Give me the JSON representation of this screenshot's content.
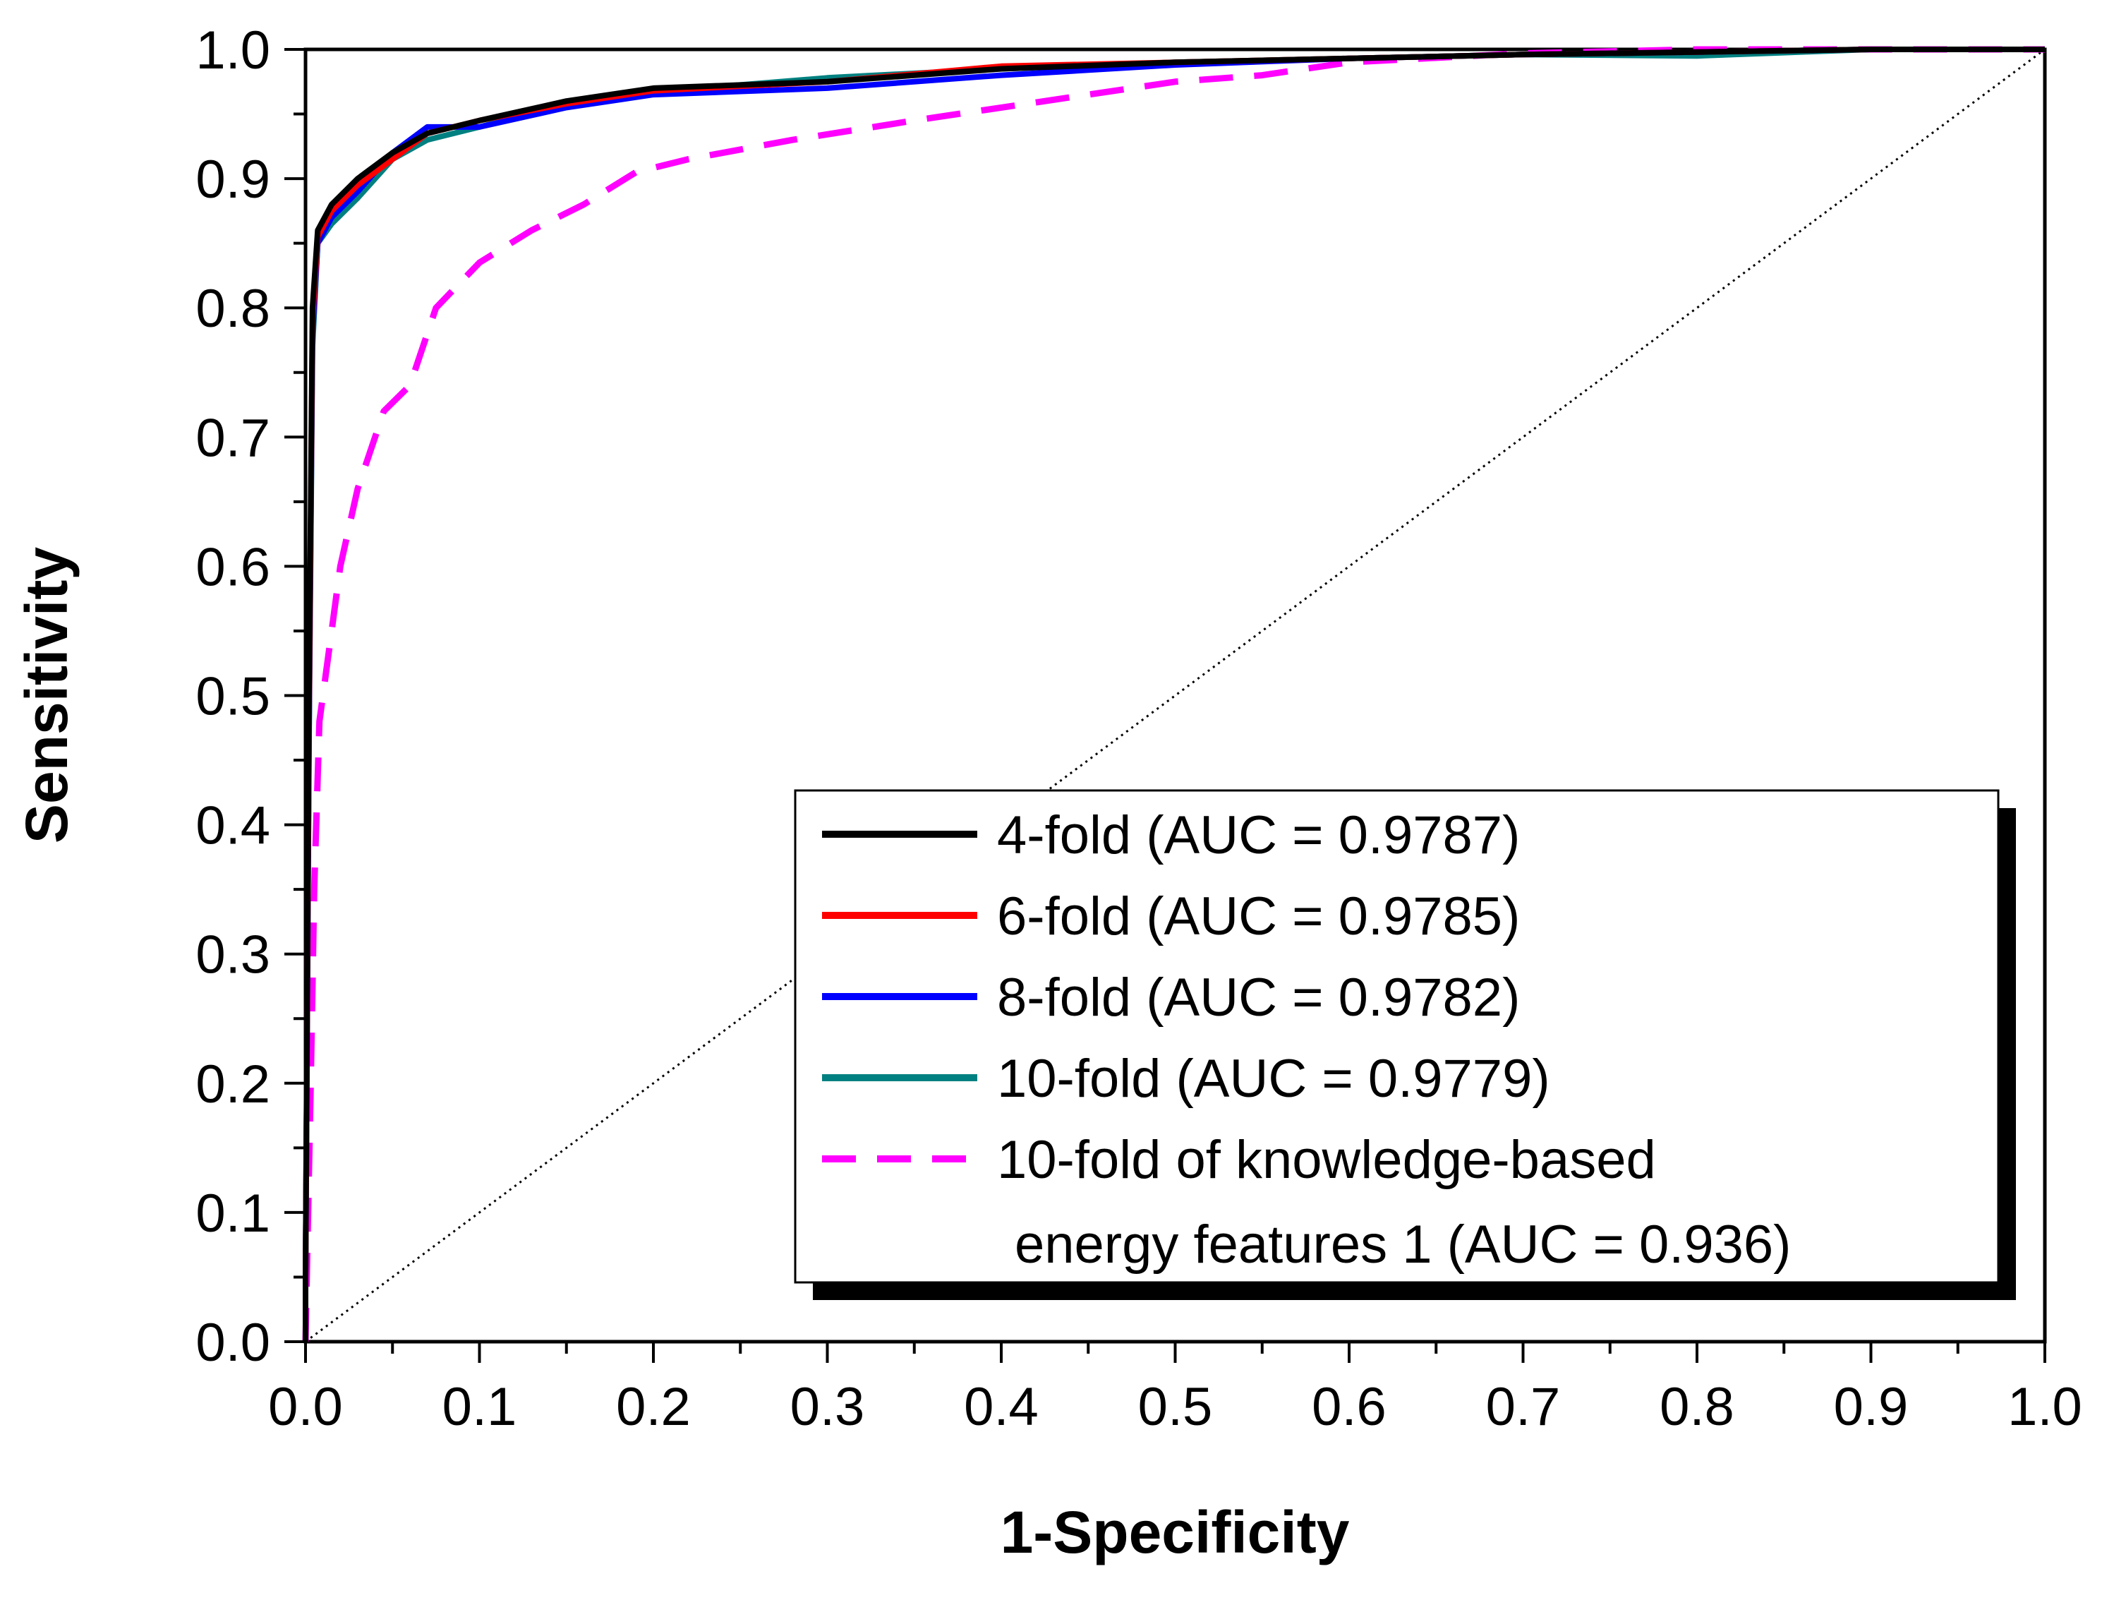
{
  "chart_data": {
    "type": "line",
    "title": "",
    "xlabel": "1-Specificity",
    "ylabel": "Sensitivity",
    "xlim": [
      0.0,
      1.0
    ],
    "ylim": [
      0.0,
      1.0
    ],
    "x_ticks": [
      "0.0",
      "0.1",
      "0.2",
      "0.3",
      "0.4",
      "0.5",
      "0.6",
      "0.7",
      "0.8",
      "0.9",
      "1.0"
    ],
    "y_ticks": [
      "0.0",
      "0.1",
      "0.2",
      "0.3",
      "0.4",
      "0.5",
      "0.6",
      "0.7",
      "0.8",
      "0.9",
      "1.0"
    ],
    "grid": false,
    "legend_position": "bottom-right",
    "series": [
      {
        "name": "4-fold (AUC = 0.9787)",
        "color": "#000000",
        "dash": "solid",
        "points": [
          [
            0,
            0
          ],
          [
            0,
            0.05
          ],
          [
            0.002,
            0.5
          ],
          [
            0.004,
            0.8
          ],
          [
            0.007,
            0.86
          ],
          [
            0.015,
            0.88
          ],
          [
            0.03,
            0.9
          ],
          [
            0.05,
            0.92
          ],
          [
            0.07,
            0.935
          ],
          [
            0.1,
            0.945
          ],
          [
            0.15,
            0.96
          ],
          [
            0.2,
            0.97
          ],
          [
            0.3,
            0.975
          ],
          [
            0.4,
            0.985
          ],
          [
            0.5,
            0.99
          ],
          [
            0.6,
            0.993
          ],
          [
            0.7,
            0.996
          ],
          [
            0.8,
            0.998
          ],
          [
            0.9,
            1.0
          ],
          [
            1.0,
            1.0
          ]
        ]
      },
      {
        "name": "6-fold (AUC = 0.9785)",
        "color": "#ff0000",
        "dash": "solid",
        "points": [
          [
            0,
            0
          ],
          [
            0,
            0.05
          ],
          [
            0.002,
            0.48
          ],
          [
            0.004,
            0.79
          ],
          [
            0.007,
            0.855
          ],
          [
            0.015,
            0.875
          ],
          [
            0.03,
            0.895
          ],
          [
            0.05,
            0.915
          ],
          [
            0.07,
            0.935
          ],
          [
            0.1,
            0.945
          ],
          [
            0.15,
            0.958
          ],
          [
            0.2,
            0.968
          ],
          [
            0.3,
            0.975
          ],
          [
            0.4,
            0.987
          ],
          [
            0.5,
            0.99
          ],
          [
            0.6,
            0.993
          ],
          [
            0.7,
            0.996
          ],
          [
            0.8,
            0.998
          ],
          [
            0.9,
            1.0
          ],
          [
            1.0,
            1.0
          ]
        ]
      },
      {
        "name": "8-fold (AUC = 0.9782)",
        "color": "#0000ff",
        "dash": "solid",
        "points": [
          [
            0,
            0
          ],
          [
            0,
            0.05
          ],
          [
            0.002,
            0.47
          ],
          [
            0.004,
            0.78
          ],
          [
            0.007,
            0.85
          ],
          [
            0.015,
            0.87
          ],
          [
            0.03,
            0.89
          ],
          [
            0.05,
            0.92
          ],
          [
            0.07,
            0.94
          ],
          [
            0.1,
            0.94
          ],
          [
            0.15,
            0.955
          ],
          [
            0.2,
            0.965
          ],
          [
            0.3,
            0.97
          ],
          [
            0.4,
            0.98
          ],
          [
            0.5,
            0.988
          ],
          [
            0.6,
            0.993
          ],
          [
            0.7,
            0.996
          ],
          [
            0.8,
            0.998
          ],
          [
            0.9,
            1.0
          ],
          [
            1.0,
            1.0
          ]
        ]
      },
      {
        "name": "10-fold (AUC = 0.9779)",
        "color": "#008080",
        "dash": "solid",
        "points": [
          [
            0,
            0
          ],
          [
            0,
            0.05
          ],
          [
            0.002,
            0.46
          ],
          [
            0.004,
            0.77
          ],
          [
            0.007,
            0.85
          ],
          [
            0.015,
            0.865
          ],
          [
            0.03,
            0.885
          ],
          [
            0.05,
            0.915
          ],
          [
            0.07,
            0.93
          ],
          [
            0.1,
            0.94
          ],
          [
            0.15,
            0.958
          ],
          [
            0.2,
            0.967
          ],
          [
            0.3,
            0.978
          ],
          [
            0.4,
            0.985
          ],
          [
            0.5,
            0.99
          ],
          [
            0.6,
            0.993
          ],
          [
            0.7,
            0.996
          ],
          [
            0.8,
            0.995
          ],
          [
            0.9,
            1.0
          ],
          [
            1.0,
            1.0
          ]
        ]
      },
      {
        "name": "10-fold of knowledge-based energy features 1 (AUC = 0.936)",
        "color": "#ff00ff",
        "dash": "dashed",
        "points": [
          [
            0,
            0
          ],
          [
            0.003,
            0.2
          ],
          [
            0.005,
            0.35
          ],
          [
            0.008,
            0.48
          ],
          [
            0.012,
            0.52
          ],
          [
            0.02,
            0.6
          ],
          [
            0.03,
            0.66
          ],
          [
            0.045,
            0.72
          ],
          [
            0.06,
            0.74
          ],
          [
            0.075,
            0.8
          ],
          [
            0.1,
            0.835
          ],
          [
            0.13,
            0.86
          ],
          [
            0.16,
            0.88
          ],
          [
            0.19,
            0.905
          ],
          [
            0.22,
            0.915
          ],
          [
            0.28,
            0.93
          ],
          [
            0.35,
            0.945
          ],
          [
            0.4,
            0.955
          ],
          [
            0.45,
            0.965
          ],
          [
            0.5,
            0.975
          ],
          [
            0.55,
            0.98
          ],
          [
            0.6,
            0.99
          ],
          [
            0.7,
            0.997
          ],
          [
            0.8,
            1.0
          ],
          [
            1.0,
            1.0
          ]
        ]
      }
    ],
    "reference_line": {
      "name": "diagonal",
      "points": [
        [
          0,
          0
        ],
        [
          1,
          1
        ]
      ]
    },
    "legend": {
      "entries": [
        "4-fold (AUC = 0.9787)",
        "6-fold (AUC = 0.9785)",
        "8-fold (AUC = 0.9782)",
        "10-fold (AUC = 0.9779)"
      ],
      "last_entry_line1": "10-fold of knowledge-based",
      "last_entry_line2": "energy features 1 (AUC = 0.936)"
    }
  }
}
